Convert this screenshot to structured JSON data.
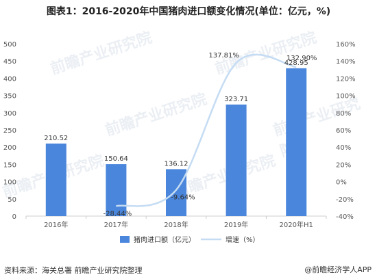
{
  "title": "图表1：2016-2020年中国猪肉进口额变化情况(单位：亿元，%)",
  "source": "资料来源：海关总署 前瞻产业研究院整理",
  "logo_text": "@前瞻经济学人APP",
  "watermark": "前瞻产业研究院",
  "colors": {
    "bar": "#4a86db",
    "line": "#c5dcf3",
    "axis": "#cccccc",
    "text": "#555555"
  },
  "chart_data": {
    "type": "bar",
    "categories": [
      "2016年",
      "2017年",
      "2018年",
      "2019年",
      "2020年H1"
    ],
    "series": [
      {
        "name": "猪肉进口额（亿元）",
        "type": "bar",
        "axis": "left",
        "values": [
          210.52,
          150.64,
          136.12,
          323.71,
          428.95
        ],
        "labels": [
          "210.52",
          "150.64",
          "136.12",
          "323.71",
          "428.95"
        ]
      },
      {
        "name": "增速（%）",
        "type": "line",
        "axis": "right",
        "values": [
          null,
          -28.44,
          -9.64,
          137.81,
          132.9
        ],
        "labels": [
          "",
          "-28.44%",
          "-9.64%",
          "137.81%",
          "132.90%"
        ]
      }
    ],
    "y_left": {
      "min": 0,
      "max": 500,
      "step": 50,
      "ticks": [
        "0",
        "50",
        "100",
        "150",
        "200",
        "250",
        "300",
        "350",
        "400",
        "450",
        "500"
      ]
    },
    "y_right": {
      "min": -40,
      "max": 160,
      "step": 20,
      "ticks": [
        "-40%",
        "-20%",
        "0%",
        "20%",
        "40%",
        "60%",
        "80%",
        "100%",
        "120%",
        "140%",
        "160%"
      ]
    },
    "legend_position": "bottom",
    "grid": false
  }
}
